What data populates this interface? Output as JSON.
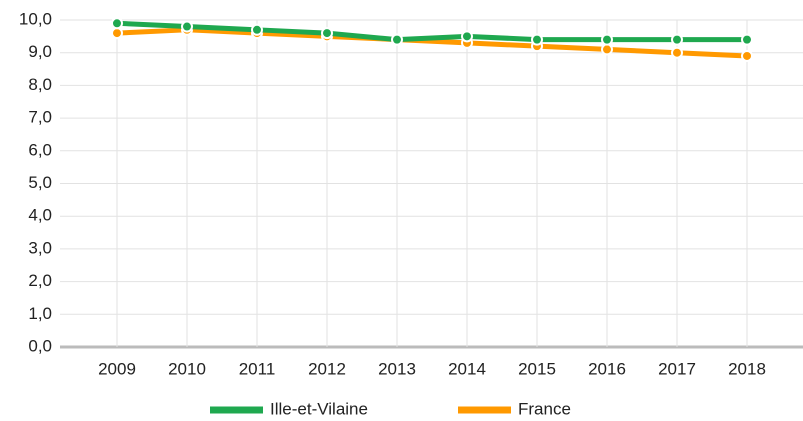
{
  "chart_data": {
    "type": "line",
    "categories": [
      "2009",
      "2010",
      "2011",
      "2012",
      "2013",
      "2014",
      "2015",
      "2016",
      "2017",
      "2018"
    ],
    "series": [
      {
        "name": "Ille-et-Vilaine",
        "color": "#1fa84f",
        "values": [
          9.9,
          9.8,
          9.7,
          9.6,
          9.4,
          9.5,
          9.4,
          9.4,
          9.4,
          9.4
        ]
      },
      {
        "name": "France",
        "color": "#ff9900",
        "values": [
          9.6,
          9.7,
          9.6,
          9.5,
          9.4,
          9.3,
          9.2,
          9.1,
          9.0,
          8.9
        ]
      }
    ],
    "ylim": [
      0,
      10
    ],
    "yticks": [
      {
        "value": 0,
        "label": "0,0"
      },
      {
        "value": 1,
        "label": "1,0"
      },
      {
        "value": 2,
        "label": "2,0"
      },
      {
        "value": 3,
        "label": "3,0"
      },
      {
        "value": 4,
        "label": "4,0"
      },
      {
        "value": 5,
        "label": "5,0"
      },
      {
        "value": 6,
        "label": "6,0"
      },
      {
        "value": 7,
        "label": "7,0"
      },
      {
        "value": 8,
        "label": "8,0"
      },
      {
        "value": 9,
        "label": "9,0"
      },
      {
        "value": 10,
        "label": "10,0"
      }
    ],
    "grid": true,
    "legend": "bottom"
  }
}
